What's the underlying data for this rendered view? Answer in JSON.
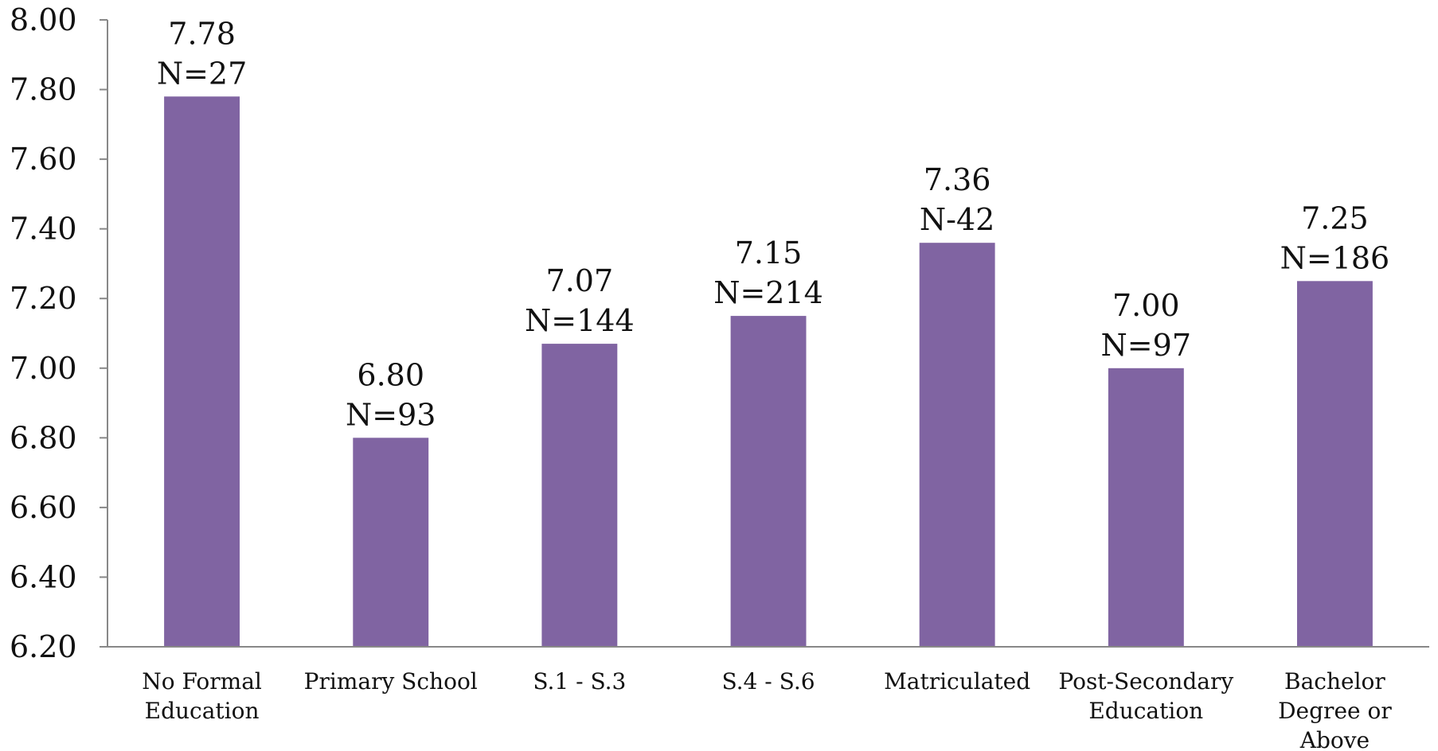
{
  "chart_data": {
    "type": "bar",
    "categories": [
      [
        "No Formal",
        "Education"
      ],
      [
        "Primary School"
      ],
      [
        "S.1 - S.3"
      ],
      [
        "S.4 - S.6"
      ],
      [
        "Matriculated"
      ],
      [
        "Post-Secondary",
        "Education"
      ],
      [
        "Bachelor",
        "Degree or",
        "Above"
      ]
    ],
    "values": [
      7.78,
      6.8,
      7.07,
      7.15,
      7.36,
      7.0,
      7.25
    ],
    "value_labels": [
      "7.78",
      "6.80",
      "7.07",
      "7.15",
      "7.36",
      "7.00",
      "7.25"
    ],
    "n_labels": [
      "N=27",
      "N=93",
      "N=144",
      "N=214",
      "N-42",
      "N=97",
      "N=186"
    ],
    "y_ticks": [
      "6.20",
      "6.40",
      "6.60",
      "6.80",
      "7.00",
      "7.20",
      "7.40",
      "7.60",
      "7.80",
      "8.00"
    ],
    "ylim": [
      6.2,
      8.0
    ],
    "grid": false,
    "legend": "none",
    "bar_color": "#8064a2",
    "axis_color": "#888888"
  }
}
